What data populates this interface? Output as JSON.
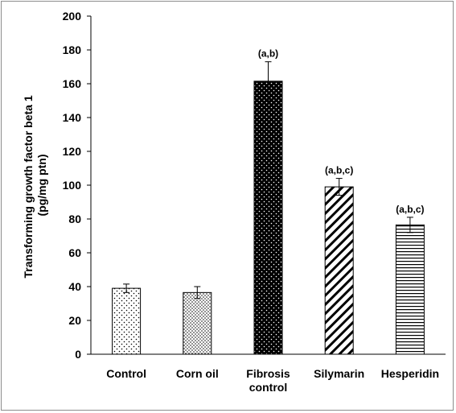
{
  "chart_data": {
    "type": "bar",
    "categories": [
      "Control",
      "Corn oil",
      "Fibrosis control",
      "Silymarin",
      "Hesperidin"
    ],
    "category_lines": [
      [
        "Control"
      ],
      [
        "Corn oil"
      ],
      [
        "Fibrosis",
        "control"
      ],
      [
        "Silymarin"
      ],
      [
        "Hesperidin"
      ]
    ],
    "values": [
      39,
      36.5,
      161.5,
      99,
      76.5
    ],
    "errors": [
      2.5,
      3.5,
      11.5,
      5,
      4.5
    ],
    "annotations": [
      "",
      "",
      "(a,b)",
      "(a,b,c)",
      "(a,b,c)"
    ],
    "patterns": [
      "sparse-dots",
      "dense-dots",
      "black-white-dots",
      "diagonal-stripes",
      "horizontal-stripes"
    ],
    "ylabel_lines": [
      "Transforming growth factor beta 1",
      "(pg/mg ptn)"
    ],
    "xlabel": "",
    "title": "",
    "ylim": [
      0,
      200
    ],
    "yticks": [
      0,
      20,
      40,
      60,
      80,
      100,
      120,
      140,
      160,
      180,
      200
    ],
    "grid": false,
    "legend": "none",
    "colors": {
      "bar_fill": "#ffffff",
      "ink": "#000000",
      "frame": "#8c8c8c"
    }
  }
}
